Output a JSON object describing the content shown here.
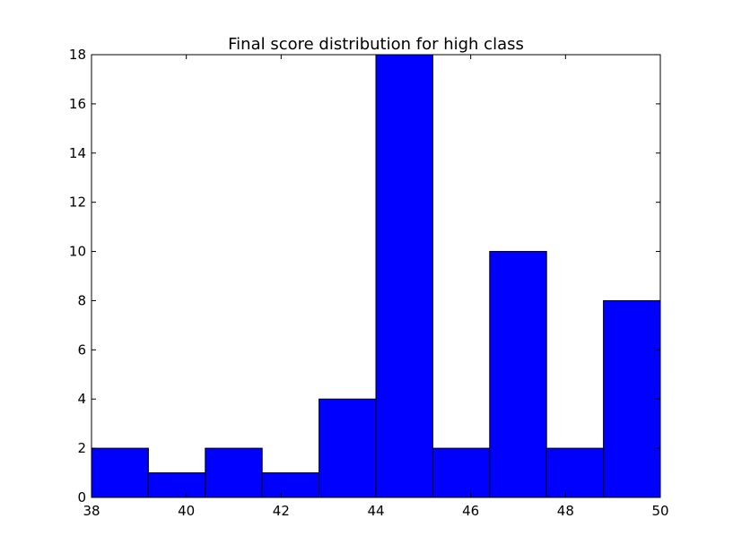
{
  "chart_data": {
    "type": "bar",
    "title": "Final score distribution for high class",
    "xlabel": "",
    "ylabel": "",
    "bin_edges": [
      38,
      39.2,
      40.4,
      41.6,
      42.8,
      44,
      45.2,
      46.4,
      47.6,
      48.8,
      50
    ],
    "values": [
      2,
      1,
      2,
      1,
      4,
      18,
      2,
      10,
      2,
      8
    ],
    "xlim": [
      38,
      50
    ],
    "ylim": [
      0,
      18
    ],
    "x_ticks": [
      38,
      40,
      42,
      44,
      46,
      48,
      50
    ],
    "y_ticks": [
      0,
      2,
      4,
      6,
      8,
      10,
      12,
      14,
      16,
      18
    ],
    "bar_color": "#0000ff",
    "edge_color": "#000000",
    "grid": false,
    "legend": "none"
  }
}
